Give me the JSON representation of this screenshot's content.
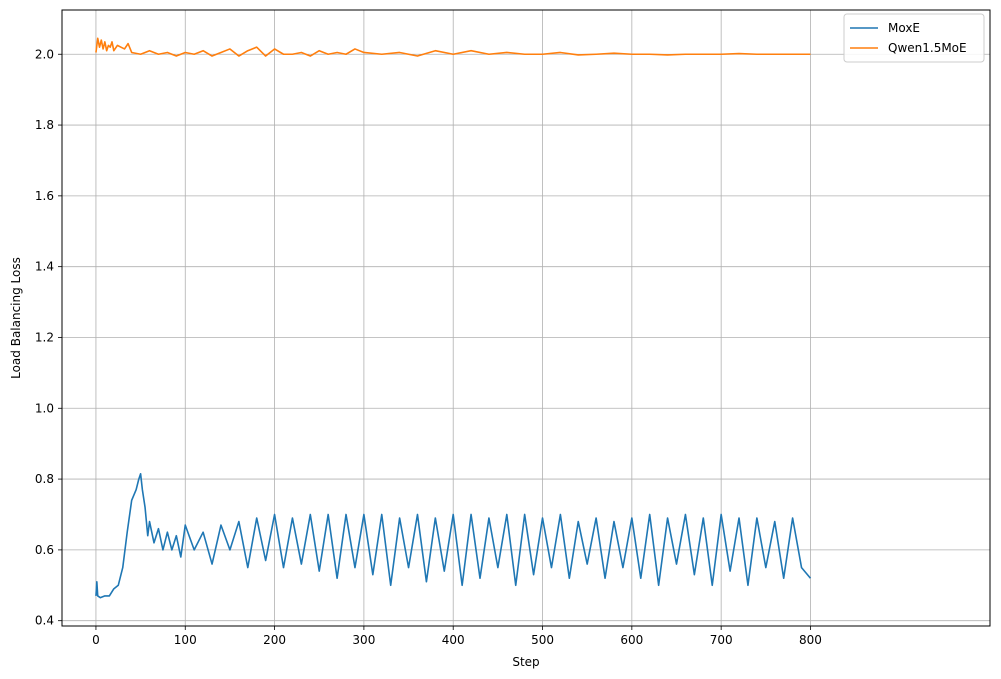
{
  "chart_data": {
    "type": "line",
    "title": "",
    "xlabel": "Step",
    "ylabel": "Load Balancing Loss",
    "xlim": [
      -38,
      1001
    ],
    "ylim": [
      0.385,
      2.125
    ],
    "xticks": [
      0,
      100,
      200,
      300,
      400,
      500,
      600,
      700,
      800
    ],
    "xtick_labels": [
      "0",
      "100",
      "200",
      "300",
      "400",
      "500",
      "600",
      "700",
      "800"
    ],
    "yticks": [
      0.4,
      0.6,
      0.8,
      1.0,
      1.2,
      1.4,
      1.6,
      1.8,
      2.0
    ],
    "ytick_labels": [
      "0.4",
      "0.6",
      "0.8",
      "1.0",
      "1.2",
      "1.4",
      "1.6",
      "1.8",
      "2.0"
    ],
    "grid": true,
    "legend": "top-right",
    "series": [
      {
        "name": "MoxE",
        "color": "#1f77b4",
        "x": [
          0,
          1,
          2,
          5,
          10,
          15,
          20,
          25,
          30,
          35,
          40,
          45,
          48,
          50,
          52,
          55,
          58,
          60,
          65,
          70,
          75,
          80,
          85,
          90,
          95,
          100,
          110,
          120,
          130,
          140,
          150,
          160,
          170,
          180,
          190,
          200,
          210,
          220,
          230,
          240,
          250,
          260,
          270,
          280,
          290,
          300,
          310,
          320,
          330,
          340,
          350,
          360,
          370,
          380,
          390,
          400,
          410,
          420,
          430,
          440,
          450,
          460,
          470,
          480,
          490,
          500,
          510,
          520,
          530,
          540,
          550,
          560,
          570,
          580,
          590,
          600,
          610,
          620,
          630,
          640,
          650,
          660,
          670,
          680,
          690,
          700,
          710,
          720,
          730,
          740,
          750,
          760,
          770,
          780,
          790,
          800
        ],
        "y": [
          0.47,
          0.51,
          0.47,
          0.465,
          0.47,
          0.47,
          0.49,
          0.5,
          0.55,
          0.65,
          0.74,
          0.77,
          0.8,
          0.815,
          0.77,
          0.72,
          0.64,
          0.68,
          0.62,
          0.66,
          0.6,
          0.65,
          0.6,
          0.64,
          0.58,
          0.67,
          0.6,
          0.65,
          0.56,
          0.67,
          0.6,
          0.68,
          0.55,
          0.69,
          0.57,
          0.7,
          0.55,
          0.69,
          0.56,
          0.7,
          0.54,
          0.7,
          0.52,
          0.7,
          0.55,
          0.7,
          0.53,
          0.7,
          0.5,
          0.69,
          0.55,
          0.7,
          0.51,
          0.69,
          0.54,
          0.7,
          0.5,
          0.7,
          0.52,
          0.69,
          0.55,
          0.7,
          0.5,
          0.7,
          0.53,
          0.69,
          0.55,
          0.7,
          0.52,
          0.68,
          0.56,
          0.69,
          0.52,
          0.68,
          0.55,
          0.69,
          0.52,
          0.7,
          0.5,
          0.69,
          0.56,
          0.7,
          0.53,
          0.69,
          0.5,
          0.7,
          0.54,
          0.69,
          0.5,
          0.69,
          0.55,
          0.68,
          0.52,
          0.69,
          0.55,
          0.52
        ]
      },
      {
        "name": "Qwen1.5MoE",
        "color": "#ff7f0e",
        "x": [
          0,
          2,
          4,
          6,
          8,
          10,
          12,
          14,
          16,
          18,
          20,
          24,
          28,
          32,
          36,
          40,
          50,
          60,
          70,
          80,
          90,
          100,
          110,
          120,
          130,
          140,
          150,
          160,
          170,
          180,
          190,
          200,
          210,
          220,
          230,
          240,
          250,
          260,
          270,
          280,
          290,
          300,
          320,
          340,
          360,
          380,
          400,
          420,
          440,
          460,
          480,
          500,
          520,
          540,
          560,
          580,
          600,
          620,
          640,
          660,
          680,
          700,
          720,
          740,
          760,
          780,
          800
        ],
        "y": [
          2.005,
          2.045,
          2.02,
          2.04,
          2.015,
          2.035,
          2.01,
          2.025,
          2.02,
          2.035,
          2.01,
          2.025,
          2.02,
          2.015,
          2.03,
          2.005,
          2.0,
          2.01,
          2.0,
          2.005,
          1.995,
          2.005,
          2.0,
          2.01,
          1.995,
          2.005,
          2.015,
          1.995,
          2.01,
          2.02,
          1.995,
          2.015,
          2.0,
          2.0,
          2.005,
          1.995,
          2.01,
          2.0,
          2.005,
          2.0,
          2.015,
          2.005,
          2.0,
          2.005,
          1.995,
          2.01,
          2.0,
          2.01,
          2.0,
          2.005,
          2.0,
          2.0,
          2.005,
          1.998,
          2.0,
          2.003,
          2.0,
          2.0,
          1.998,
          2.0,
          2.0,
          2.0,
          2.002,
          2.0,
          2.0,
          2.0,
          2.0
        ]
      }
    ]
  }
}
